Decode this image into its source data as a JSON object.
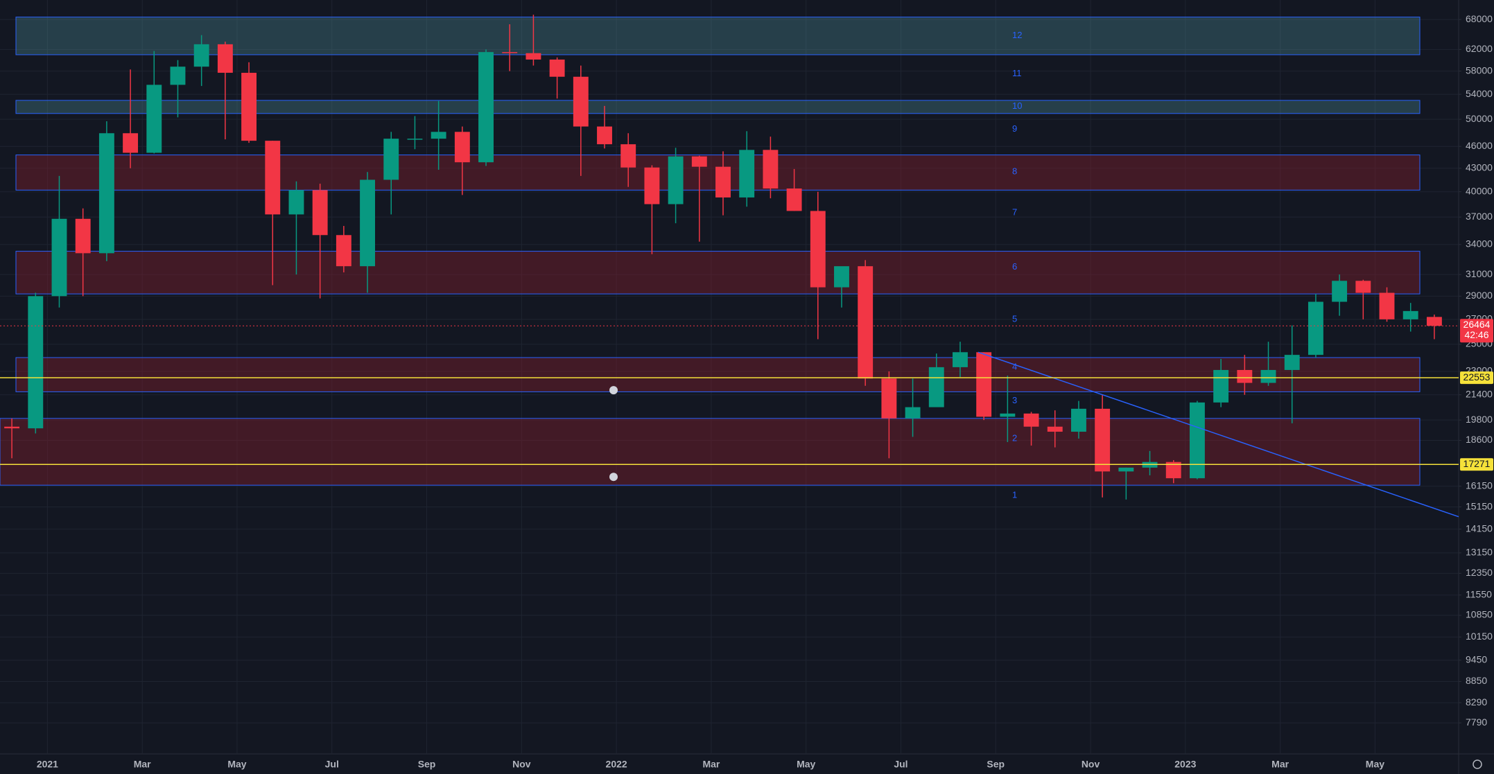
{
  "chart_data": {
    "type": "candlestick",
    "log_scale": true,
    "grid": true,
    "ylim": [
      7080,
      72200
    ],
    "yticks": [
      68000,
      62000,
      58000,
      54000,
      50000,
      46000,
      43000,
      40000,
      37000,
      34000,
      31000,
      29000,
      27000,
      25000,
      23000,
      21400,
      19800,
      18600,
      16150,
      15150,
      14150,
      13150,
      12350,
      11550,
      10850,
      10150,
      9450,
      8850,
      8290,
      7790
    ],
    "categories": [
      null,
      null,
      "2021",
      null,
      null,
      null,
      "Mar",
      null,
      null,
      null,
      "May",
      null,
      null,
      null,
      "Jul",
      null,
      null,
      null,
      "Sep",
      null,
      null,
      null,
      "Nov",
      null,
      null,
      null,
      "2022",
      null,
      null,
      null,
      "Mar",
      null,
      null,
      null,
      "May",
      null,
      null,
      null,
      "Jul",
      null,
      null,
      null,
      "Sep",
      null,
      null,
      null,
      "Nov",
      null,
      null,
      null,
      "2023",
      null,
      null,
      null,
      "Mar",
      null,
      null,
      null,
      "May",
      null,
      null
    ],
    "up_color": "#089981",
    "down_color": "#f23645",
    "open": [
      19400,
      19300,
      29000,
      36800,
      33100,
      47900,
      45100,
      55600,
      58800,
      63000,
      57700,
      46800,
      37300,
      40200,
      35000,
      31800,
      41500,
      47100,
      47100,
      48100,
      43800,
      61500,
      61300,
      60100,
      57000,
      48900,
      46300,
      43100,
      38500,
      44600,
      43200,
      39300,
      45500,
      40400,
      37700,
      29800,
      31800,
      22500,
      19900,
      20600,
      23300,
      24400,
      20000,
      20200,
      19400,
      19100,
      20500,
      16900,
      17100,
      17400,
      16550,
      20900,
      23100,
      22200,
      23100,
      24200,
      28500,
      30400,
      29300,
      27000,
      27200
    ],
    "high": [
      19900,
      29300,
      42000,
      38000,
      49700,
      58300,
      61700,
      60000,
      64800,
      63500,
      59600,
      46800,
      41300,
      41000,
      36000,
      42500,
      48100,
      50500,
      52900,
      48900,
      62000,
      67000,
      69000,
      60500,
      59000,
      52100,
      47900,
      43400,
      45800,
      44700,
      45300,
      48200,
      47400,
      42900,
      40000,
      31500,
      32400,
      23000,
      22500,
      24300,
      25200,
      24400,
      22700,
      20300,
      20400,
      21000,
      21400,
      17100,
      18000,
      17500,
      21000,
      23900,
      24200,
      25200,
      26500,
      29200,
      31000,
      30500,
      29800,
      28400,
      27400
    ],
    "low": [
      17600,
      19000,
      28000,
      29000,
      32300,
      43000,
      45000,
      50300,
      55400,
      47000,
      46500,
      30000,
      31000,
      28800,
      31200,
      29300,
      37300,
      45600,
      42800,
      39600,
      43300,
      58000,
      59000,
      53300,
      42000,
      45700,
      40600,
      33000,
      36300,
      34300,
      37200,
      38200,
      39200,
      37700,
      25400,
      28000,
      22000,
      17600,
      18800,
      20700,
      22600,
      19800,
      18500,
      18300,
      18200,
      18700,
      15600,
      15500,
      16700,
      16300,
      16500,
      20600,
      21400,
      22000,
      19600,
      24000,
      27300,
      27000,
      26800,
      26000,
      25400
    ],
    "close": [
      19300,
      29000,
      36800,
      33100,
      47900,
      45100,
      55600,
      58800,
      63000,
      57700,
      46800,
      37300,
      40200,
      35000,
      31800,
      41500,
      47100,
      47100,
      48100,
      43800,
      61500,
      61300,
      60100,
      57000,
      48900,
      46300,
      43100,
      38500,
      44600,
      43200,
      39300,
      45500,
      40400,
      37700,
      29800,
      31800,
      22500,
      19900,
      20600,
      23300,
      24400,
      20000,
      20200,
      19400,
      19100,
      20500,
      16900,
      17100,
      17400,
      16550,
      20900,
      23100,
      22200,
      23100,
      24200,
      28500,
      30400,
      29300,
      27000,
      27700,
      26464
    ],
    "zones": [
      {
        "low": 61000,
        "high": 68500,
        "color": "teal"
      },
      {
        "low": 50900,
        "high": 53000,
        "color": "teal"
      },
      {
        "low": 40200,
        "high": 44800,
        "color": "red"
      },
      {
        "low": 29200,
        "high": 33300,
        "color": "red"
      },
      {
        "low": 21600,
        "high": 24000,
        "color": "red"
      },
      {
        "low": 16200,
        "high": 19900,
        "color": "red"
      }
    ],
    "level_labels": [
      {
        "text": "12",
        "price": 64700
      },
      {
        "text": "11",
        "price": 57500
      },
      {
        "text": "10",
        "price": 52000
      },
      {
        "text": "9",
        "price": 48500
      },
      {
        "text": "8",
        "price": 42500
      },
      {
        "text": "7",
        "price": 37500
      },
      {
        "text": "6",
        "price": 31700
      },
      {
        "text": "5",
        "price": 27000
      },
      {
        "text": "4",
        "price": 23300
      },
      {
        "text": "3",
        "price": 21000
      },
      {
        "text": "2",
        "price": 18700
      },
      {
        "text": "1",
        "price": 15700
      }
    ],
    "trendline": {
      "from": 24400,
      "to": 14700
    },
    "alert_lines": [
      22553,
      17271
    ],
    "last_price": 26464,
    "countdown": "42:46"
  }
}
